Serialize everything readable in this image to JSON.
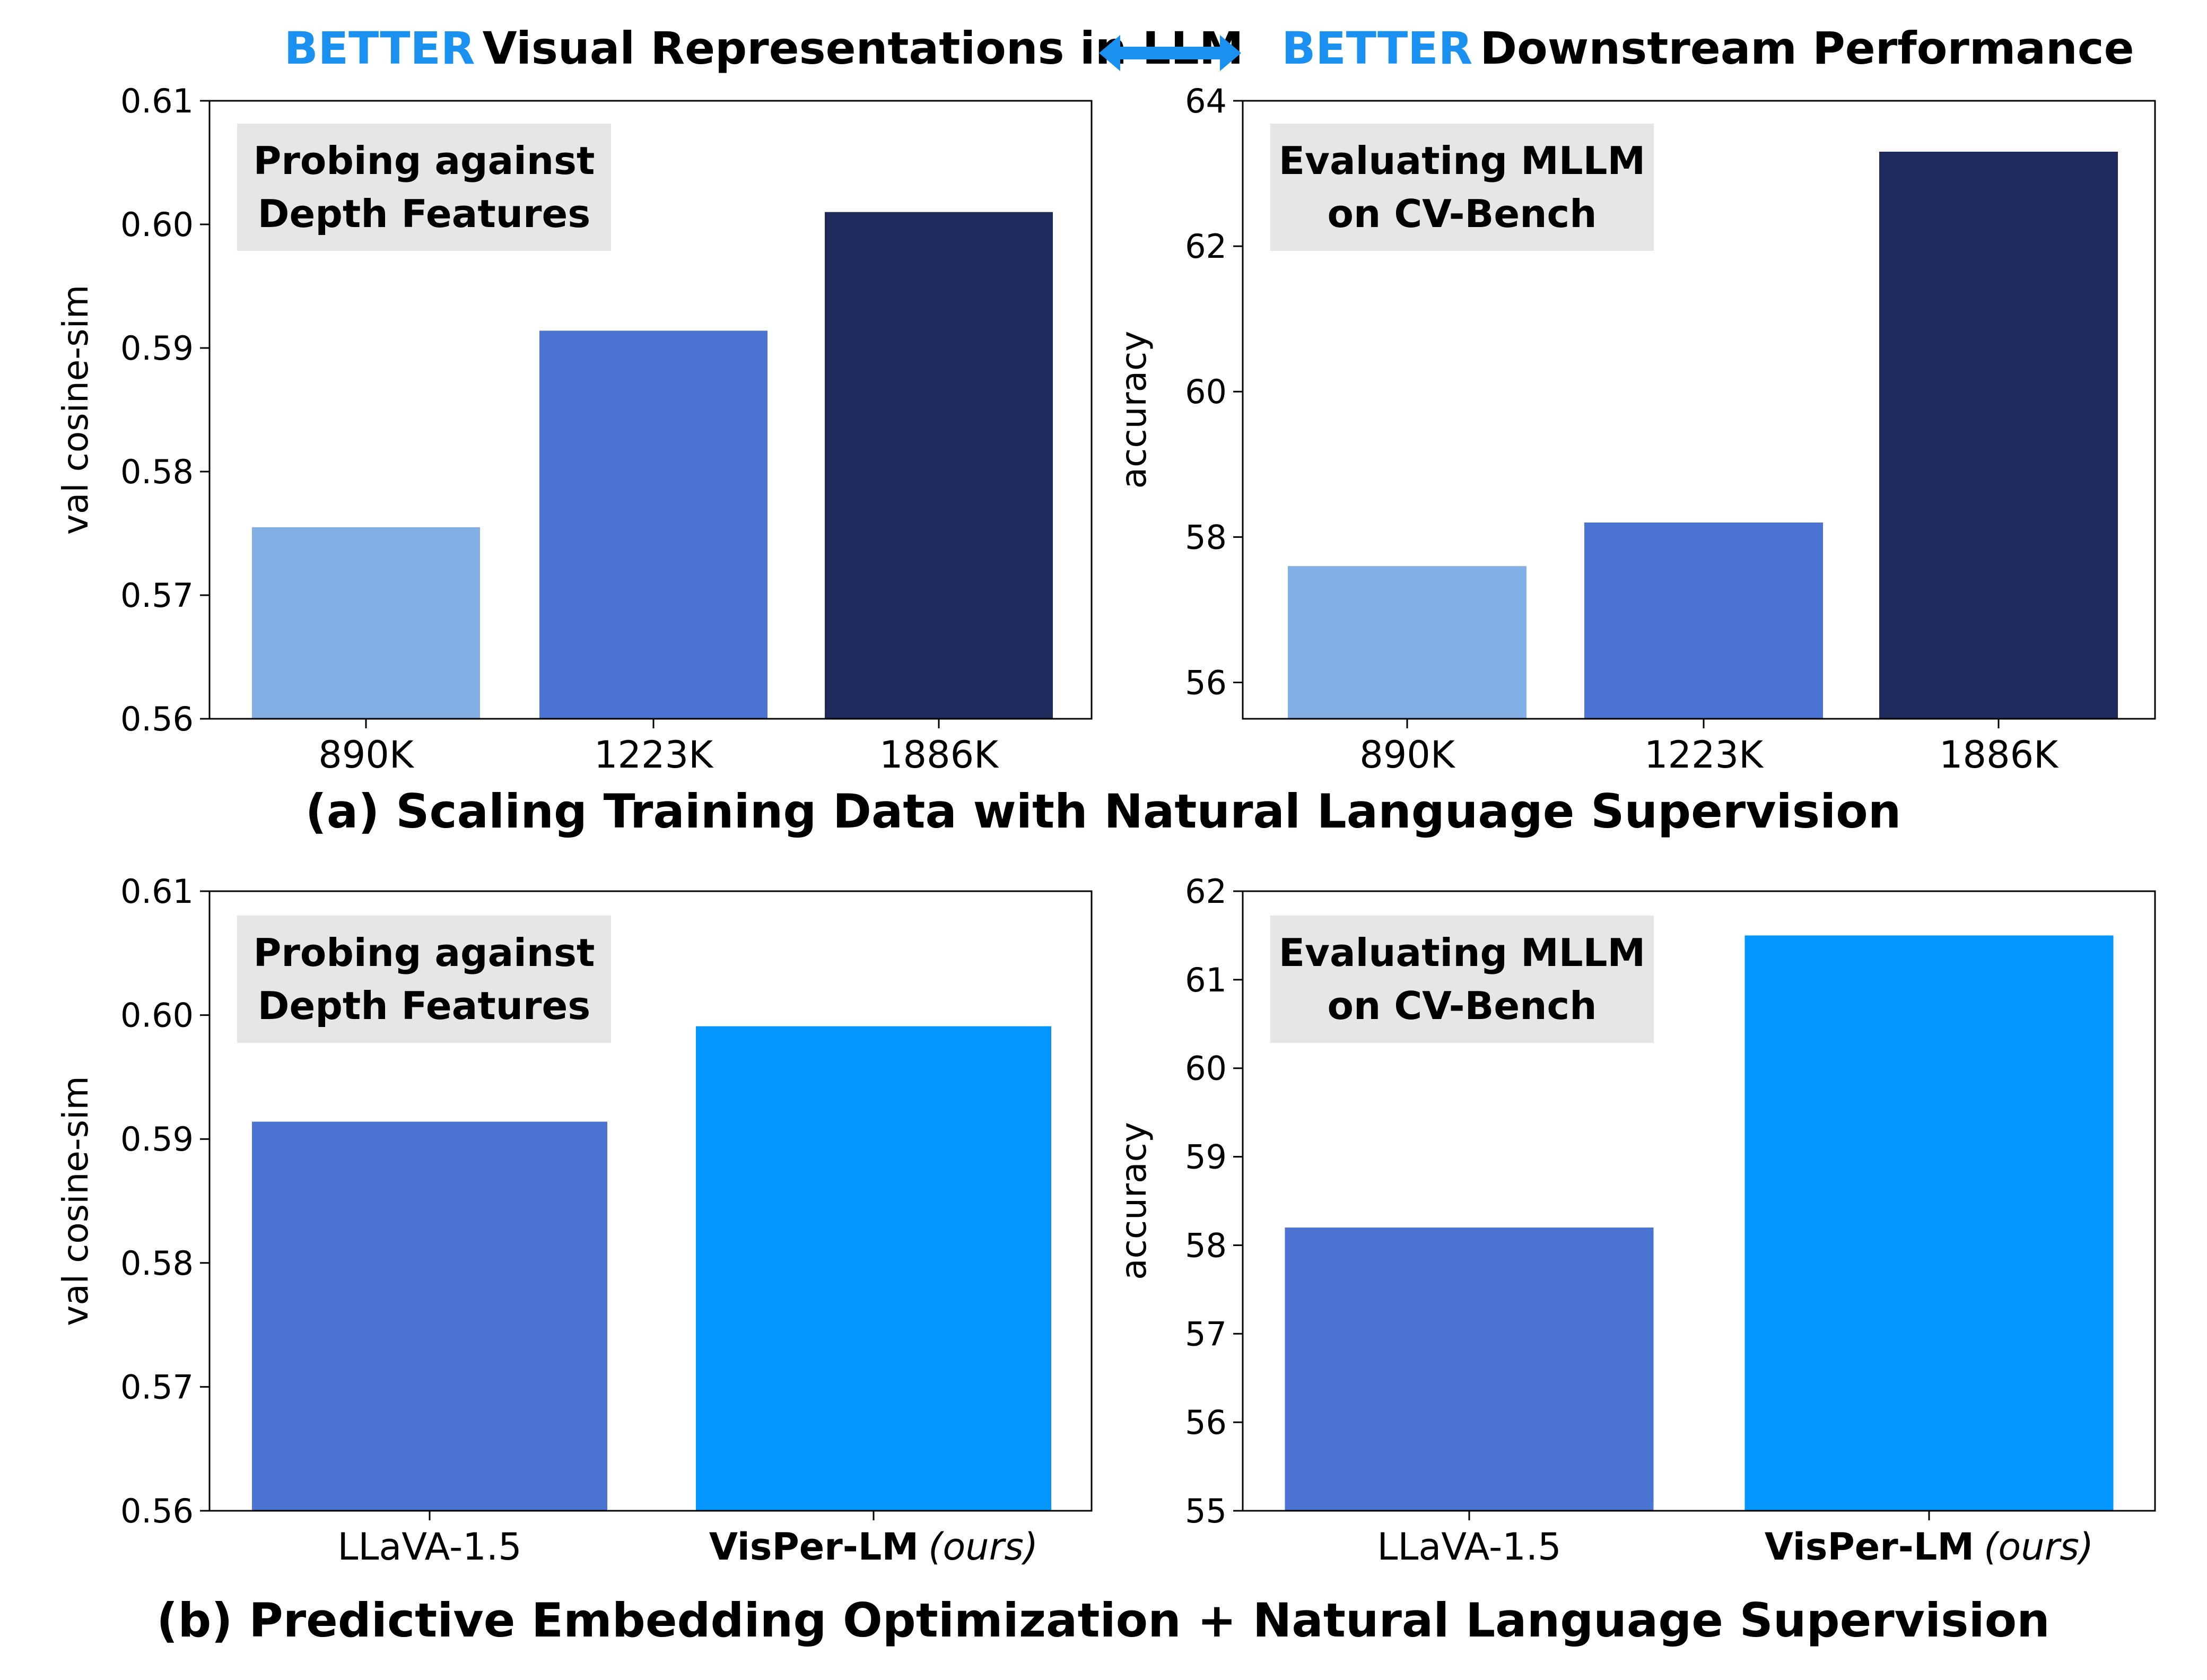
{
  "header": {
    "left_accent": "BETTER",
    "left_text": "Visual Representations in LLM",
    "right_accent": "BETTER",
    "right_text": "Downstream Performance",
    "accent_color": "#1a90f0",
    "arrow_color": "#1a90f0"
  },
  "captions": {
    "a": "(a) Scaling Training Data with Natural Language Supervision",
    "b": "(b) Predictive Embedding Optimization + Natural Language Supervision"
  },
  "chart_data": [
    {
      "id": "a-left",
      "type": "bar",
      "categories": [
        "890K",
        "1223K",
        "1886K"
      ],
      "values": [
        0.5755,
        0.5914,
        0.601
      ],
      "colors": [
        "#82b0e4",
        "#4b74d2",
        "#1d2b5c"
      ],
      "ylabel": "val cosine-sim",
      "ylim": [
        0.56,
        0.61
      ],
      "yticks": [
        "0.56",
        "0.57",
        "0.58",
        "0.59",
        "0.60",
        "0.61"
      ],
      "box_label": [
        "Probing against",
        "Depth Features"
      ],
      "grid": false
    },
    {
      "id": "a-right",
      "type": "bar",
      "categories": [
        "890K",
        "1223K",
        "1886K"
      ],
      "values": [
        57.6,
        58.2,
        63.3
      ],
      "colors": [
        "#82b0e4",
        "#4b74d2",
        "#1d2b5c"
      ],
      "ylabel": "accuracy",
      "ylim": [
        55.5,
        64
      ],
      "yticks": [
        "56",
        "58",
        "60",
        "62",
        "64"
      ],
      "box_label": [
        "Evaluating MLLM",
        "on CV-Bench"
      ],
      "grid": false
    },
    {
      "id": "b-left",
      "type": "bar",
      "categories": [
        "LLaVA-1.5",
        "VisPer-LM"
      ],
      "category_suffix": [
        "",
        "(ours)"
      ],
      "values": [
        0.5914,
        0.5991
      ],
      "colors": [
        "#4b74d2",
        "#0396ff"
      ],
      "ylabel": "val cosine-sim",
      "ylim": [
        0.56,
        0.61
      ],
      "yticks": [
        "0.56",
        "0.57",
        "0.58",
        "0.59",
        "0.60",
        "0.61"
      ],
      "box_label": [
        "Probing against",
        "Depth Features"
      ],
      "grid": false
    },
    {
      "id": "b-right",
      "type": "bar",
      "categories": [
        "LLaVA-1.5",
        "VisPer-LM"
      ],
      "category_suffix": [
        "",
        "(ours)"
      ],
      "values": [
        58.2,
        61.5
      ],
      "colors": [
        "#4b74d2",
        "#0396ff"
      ],
      "ylabel": "accuracy",
      "ylim": [
        55,
        62
      ],
      "yticks": [
        "55",
        "56",
        "57",
        "58",
        "59",
        "60",
        "61",
        "62"
      ],
      "box_label": [
        "Evaluating MLLM",
        "on CV-Bench"
      ],
      "grid": false
    }
  ]
}
